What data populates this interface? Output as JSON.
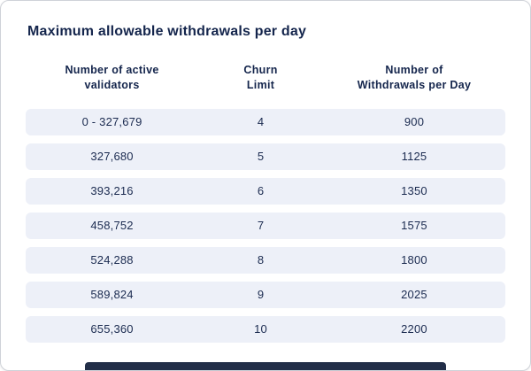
{
  "card": {
    "title": "Maximum allowable withdrawals per day"
  },
  "table": {
    "headers": [
      [
        "Number of active",
        "validators"
      ],
      [
        "Churn",
        "Limit"
      ],
      [
        "Number of",
        "Withdrawals per Day"
      ]
    ],
    "rows": [
      [
        "0 - 327,679",
        "4",
        "900"
      ],
      [
        "327,680",
        "5",
        "1125"
      ],
      [
        "393,216",
        "6",
        "1350"
      ],
      [
        "458,752",
        "7",
        "1575"
      ],
      [
        "524,288",
        "8",
        "1800"
      ],
      [
        "589,824",
        "9",
        "2025"
      ],
      [
        "655,360",
        "10",
        "2200"
      ]
    ]
  },
  "chart_data": {
    "type": "table",
    "title": "Maximum allowable withdrawals per day",
    "columns": [
      "Number of active validators",
      "Churn Limit",
      "Number of Withdrawals per Day"
    ],
    "rows": [
      [
        "0 - 327,679",
        4,
        900
      ],
      [
        "327,680",
        5,
        1125
      ],
      [
        "393,216",
        6,
        1350
      ],
      [
        "458,752",
        7,
        1575
      ],
      [
        "524,288",
        8,
        1800
      ],
      [
        "589,824",
        9,
        2025
      ],
      [
        "655,360",
        10,
        2200
      ]
    ]
  },
  "colors": {
    "text": "#14254c",
    "row_background": "#edf0f8",
    "card_border": "#cfd2d8",
    "bottom_bar": "#222e48"
  }
}
